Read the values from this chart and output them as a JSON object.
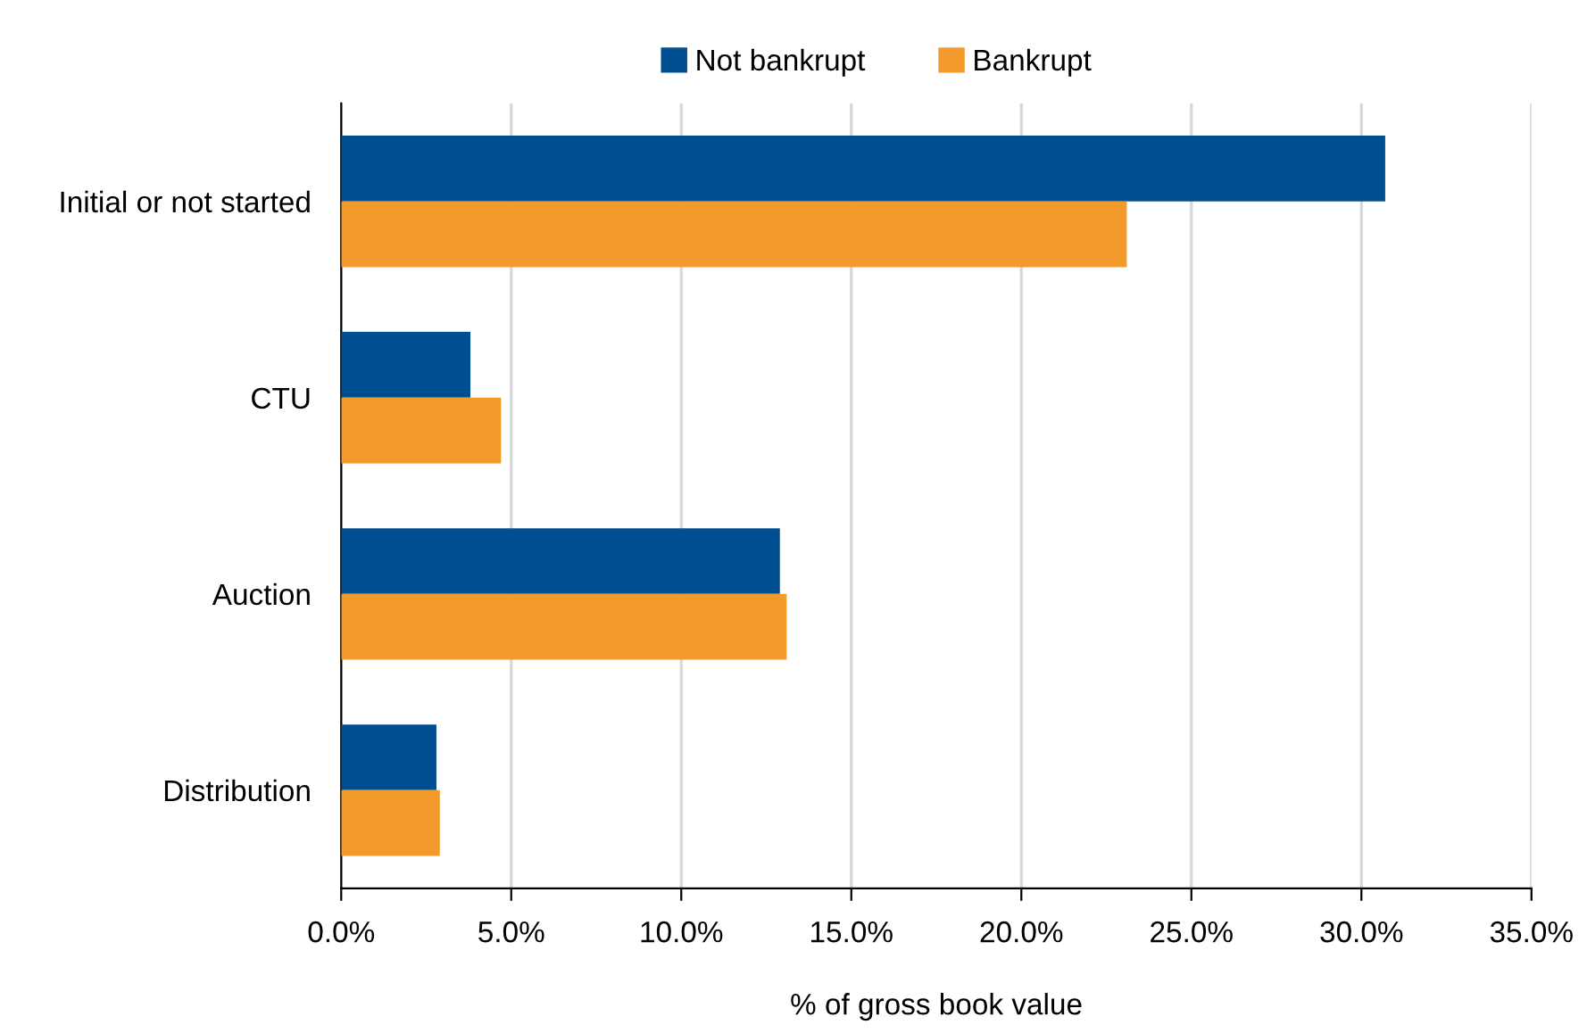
{
  "chart_data": {
    "type": "bar",
    "orientation": "horizontal",
    "xlabel": "% of gross book value",
    "categories": [
      "Initial or not started",
      "CTU",
      "Auction",
      "Distribution"
    ],
    "series": [
      {
        "name": "Not bankrupt",
        "color": "#004f93",
        "values": [
          30.7,
          3.8,
          12.9,
          2.8
        ]
      },
      {
        "name": "Bankrupt",
        "color": "#f39a2c",
        "values": [
          23.1,
          4.7,
          13.1,
          2.9
        ]
      }
    ],
    "xlim": [
      0,
      35
    ],
    "xticks": [
      {
        "value": 0,
        "label": "0.0%"
      },
      {
        "value": 5,
        "label": "5.0%"
      },
      {
        "value": 10,
        "label": "10.0%"
      },
      {
        "value": 15,
        "label": "15.0%"
      },
      {
        "value": 20,
        "label": "20.0%"
      },
      {
        "value": 25,
        "label": "25.0%"
      },
      {
        "value": 30,
        "label": "30.0%"
      },
      {
        "value": 35,
        "label": "35.0%"
      }
    ],
    "grid": "x",
    "legend": "top"
  }
}
